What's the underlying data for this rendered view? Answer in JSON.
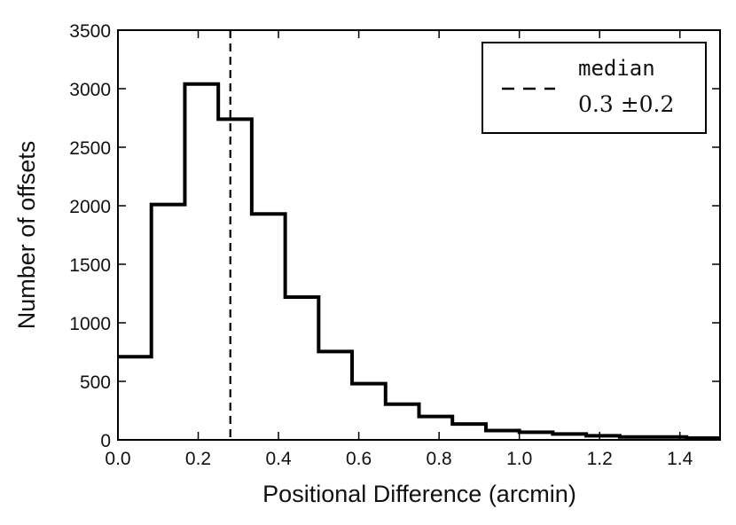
{
  "chart_data": {
    "type": "bar",
    "title": "",
    "xlabel": "Positional Difference (arcmin)",
    "ylabel": "Number of offsets",
    "xlim": [
      0.0,
      1.5
    ],
    "ylim": [
      0,
      3500
    ],
    "grid": false,
    "bin_edges": [
      0.0,
      0.0833,
      0.1667,
      0.25,
      0.3333,
      0.4167,
      0.5,
      0.5833,
      0.6667,
      0.75,
      0.8333,
      0.9167,
      1.0,
      1.0833,
      1.1667,
      1.25,
      1.3333,
      1.4167,
      1.5
    ],
    "values": [
      710,
      2010,
      3040,
      2740,
      1930,
      1220,
      755,
      480,
      305,
      200,
      135,
      80,
      65,
      50,
      35,
      25,
      25,
      15
    ],
    "xticks": [
      "0.0",
      "0.2",
      "0.4",
      "0.6",
      "0.8",
      "1.0",
      "1.2",
      "1.4"
    ],
    "yticks": [
      "0",
      "500",
      "1000",
      "1500",
      "2000",
      "2500",
      "3000",
      "3500"
    ],
    "median_line": {
      "x": 0.28,
      "style": "dashed"
    },
    "legend": {
      "placement": "top-right",
      "title": "median",
      "value": "0.3 ±0.2"
    },
    "line_color": "#000000"
  }
}
